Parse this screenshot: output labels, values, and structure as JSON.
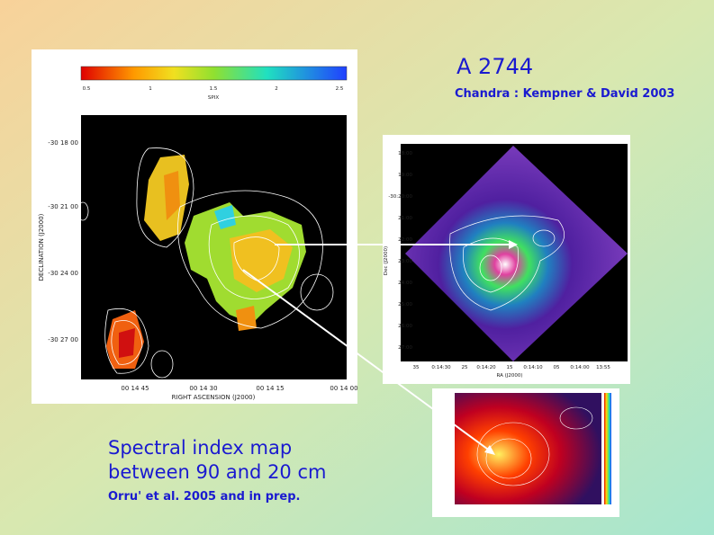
{
  "title": "A 2744",
  "subtitle": "Chandra : Kempner & David 2003",
  "caption": {
    "line1": "Spectral index map",
    "line2": "between 90 and 20 cm",
    "credit": "Orru' et al. 2005 and in prep."
  },
  "radio_map": {
    "colorbar_label": "SPIX",
    "colorbar_ticks": [
      "0.5",
      "1",
      "1.5",
      "2",
      "2.5"
    ],
    "y_label": "DECLINATION (J2000)",
    "x_label": "RIGHT ASCENSION (J2000)",
    "y_ticks": [
      "-30 18 00",
      "-30 21 00",
      "-30 24 00",
      "-30 27 00"
    ],
    "x_ticks": [
      "00 14 45",
      "00 14 30",
      "00 14 15",
      "00 14 00"
    ]
  },
  "xray_map": {
    "y_label": "Dec (J2000)",
    "x_label": "RA (J2000)",
    "y_ticks": [
      "18:00",
      "19:00",
      "-30:20:00",
      "21:00",
      "22:00",
      "23:00",
      "24:00",
      "25:00",
      "26:00",
      "27:00"
    ],
    "x_ticks": [
      "35",
      "0:14:30",
      "25",
      "0:14:20",
      "15",
      "0:14:10",
      "05",
      "0:14:00",
      "13:55"
    ]
  }
}
